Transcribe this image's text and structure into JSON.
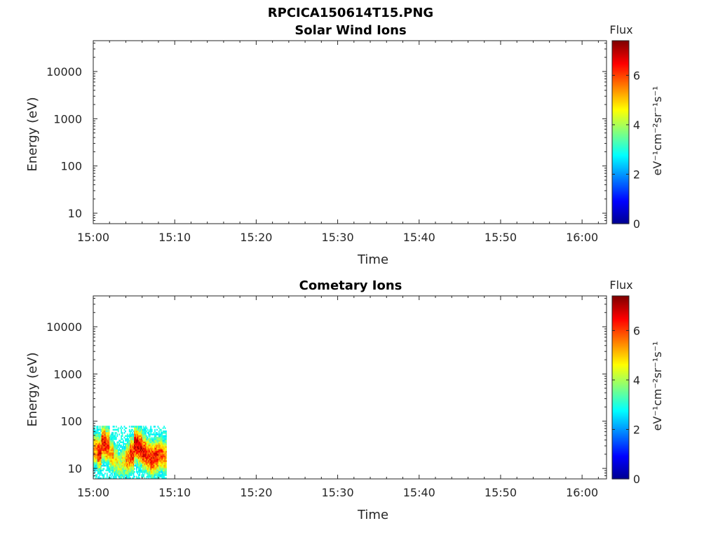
{
  "figure_title": "RPCICA150614T15.PNG",
  "colors": {
    "axis": "#262626",
    "title": "#000000",
    "background": "#ffffff",
    "colormap": [
      "#00008f",
      "#0000ff",
      "#0080ff",
      "#00ffff",
      "#80ff80",
      "#ffff00",
      "#ff8000",
      "#ff0000",
      "#800000"
    ]
  },
  "chart_data": [
    {
      "type": "heatmap",
      "title": "Solar Wind Ions",
      "xlabel": "Time",
      "ylabel": "Energy (eV)",
      "x_range": [
        "15:00",
        "16:03"
      ],
      "x_ticks": [
        "15:00",
        "15:10",
        "15:20",
        "15:30",
        "15:40",
        "15:50",
        "16:00"
      ],
      "y_scale": "log",
      "y_range": [
        6,
        45000
      ],
      "y_ticks": [
        "10",
        "100",
        "1000",
        "10000"
      ],
      "colorbar": {
        "title": "Flux",
        "label": "eV⁻¹cm⁻²sr⁻¹s⁻¹",
        "range": [
          0,
          7.4
        ],
        "ticks": [
          "0",
          "2",
          "4",
          "6"
        ]
      },
      "data": []
    },
    {
      "type": "heatmap",
      "title": "Cometary Ions",
      "xlabel": "Time",
      "ylabel": "Energy (eV)",
      "x_range": [
        "15:00",
        "16:03"
      ],
      "x_ticks": [
        "15:00",
        "15:10",
        "15:20",
        "15:30",
        "15:40",
        "15:50",
        "16:00"
      ],
      "y_scale": "log",
      "y_range": [
        6,
        45000
      ],
      "y_ticks": [
        "10",
        "100",
        "1000",
        "10000"
      ],
      "colorbar": {
        "title": "Flux",
        "label": "eV⁻¹cm⁻²sr⁻¹s⁻¹",
        "range": [
          0,
          7.4
        ],
        "ticks": [
          "0",
          "2",
          "4",
          "6"
        ]
      },
      "data": {
        "time_range": [
          "15:00",
          "15:09"
        ],
        "energy_range_eV": [
          6,
          80
        ],
        "time_bins": [
          "15:00:00",
          "15:00:30",
          "15:01:00",
          "15:01:30",
          "15:02:00",
          "15:02:30",
          "15:03:00",
          "15:03:30",
          "15:04:00",
          "15:04:30",
          "15:05:00",
          "15:05:30",
          "15:06:00",
          "15:06:30",
          "15:07:00",
          "15:07:30",
          "15:08:00",
          "15:08:30"
        ],
        "peak_flux": [
          5.5,
          6.3,
          6.6,
          6.2,
          5.3,
          4.6,
          4.2,
          4.6,
          5.6,
          6.4,
          6.8,
          6.7,
          6.5,
          6.2,
          6.5,
          6.4,
          6.0,
          5.6
        ],
        "peak_energy_eV": [
          25,
          22,
          35,
          30,
          20,
          15,
          12,
          14,
          16,
          20,
          32,
          28,
          22,
          18,
          16,
          18,
          20,
          18
        ]
      }
    }
  ]
}
